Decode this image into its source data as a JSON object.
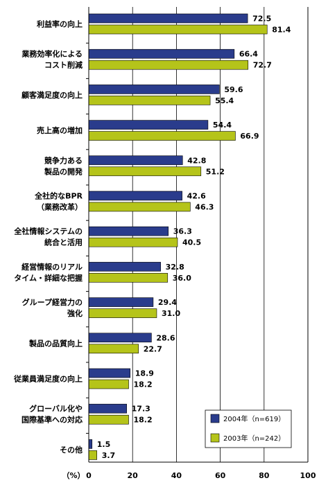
{
  "chart_data": {
    "type": "bar",
    "orientation": "horizontal",
    "categories": [
      [
        "利益率の向上"
      ],
      [
        "業務効率化による",
        "コスト削減"
      ],
      [
        "顧客満足度の向上"
      ],
      [
        "売上高の増加"
      ],
      [
        "競争力ある",
        "製品の開発"
      ],
      [
        "全社的なBPR",
        "（業務改革）"
      ],
      [
        "全社情報システムの",
        "統合と活用"
      ],
      [
        "経営情報のリアル",
        "タイム・詳細な把握"
      ],
      [
        "グループ経営力の",
        "強化"
      ],
      [
        "製品の品質向上"
      ],
      [
        "従業員満足度の向上"
      ],
      [
        "グローバル化や",
        "国際基準への対応"
      ],
      [
        "その他"
      ]
    ],
    "series": [
      {
        "name": "2004年（n=619）",
        "color": "#2a3c8c",
        "values": [
          72.5,
          66.4,
          59.6,
          54.4,
          42.8,
          42.6,
          36.3,
          32.8,
          29.4,
          28.6,
          18.9,
          17.3,
          1.5
        ]
      },
      {
        "name": "2003年（n=242）",
        "color": "#b5c41a",
        "values": [
          81.4,
          72.7,
          55.4,
          66.9,
          51.2,
          46.3,
          40.5,
          36.0,
          31.0,
          22.7,
          18.2,
          18.2,
          3.7
        ]
      }
    ],
    "xlim": [
      0,
      100
    ],
    "xticks": [
      "0",
      "20",
      "40",
      "60",
      "80",
      "100"
    ],
    "xunit": "（%）",
    "grid": true,
    "legend_position": "bottom-right"
  }
}
